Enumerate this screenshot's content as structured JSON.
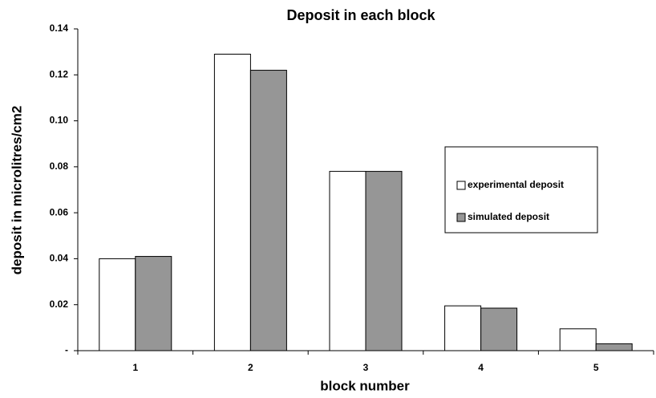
{
  "chart_data": {
    "type": "bar",
    "title": "Deposit in each block",
    "x_label": "block number",
    "y_label": "deposit in microlitres/cm2",
    "categories": [
      "1",
      "2",
      "3",
      "4",
      "5"
    ],
    "series": [
      {
        "name": "experimental deposit",
        "color": "#ffffff",
        "values": [
          0.04,
          0.129,
          0.078,
          0.0195,
          0.0095
        ]
      },
      {
        "name": "simulated deposit",
        "color": "#969696",
        "values": [
          0.041,
          0.122,
          0.078,
          0.0185,
          0.003
        ]
      }
    ],
    "ylim": [
      0,
      0.14
    ],
    "yticks": [
      {
        "value": 0,
        "label": "-"
      },
      0.02,
      0.04,
      0.06,
      0.08,
      {
        "value": 0.1,
        "label": "0.10"
      },
      0.12,
      0.14
    ],
    "grid": false,
    "legend": "right"
  }
}
